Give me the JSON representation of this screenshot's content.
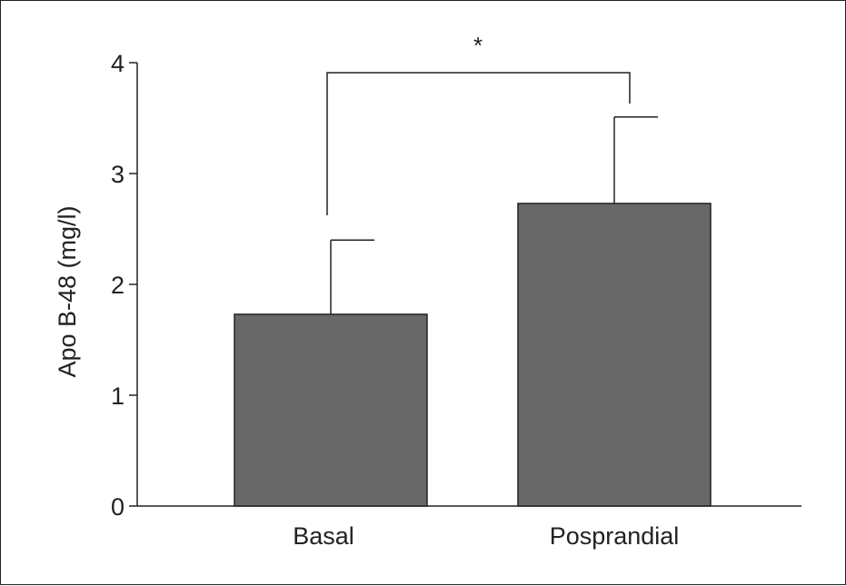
{
  "chart_data": {
    "type": "bar",
    "categories": [
      "Basal",
      "Posprandial"
    ],
    "values": [
      1.73,
      2.73
    ],
    "error_upper": [
      2.4,
      3.51
    ],
    "ylabel": "Apo B-48 (mg/l)",
    "xlabel": "",
    "ylim": [
      0,
      4
    ],
    "yticks": [
      "0",
      "1",
      "2",
      "3",
      "4"
    ],
    "significance": {
      "label": "*",
      "between": [
        "Basal",
        "Posprandial"
      ]
    },
    "grid": false,
    "bar_color": "#686868"
  }
}
